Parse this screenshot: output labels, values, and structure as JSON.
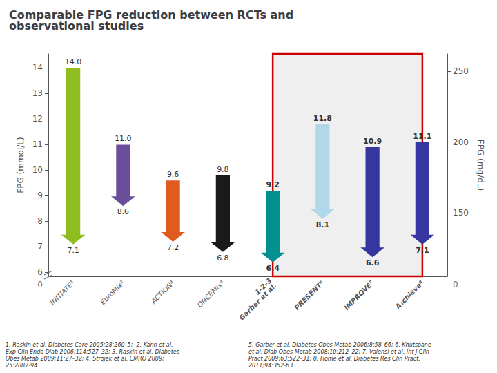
{
  "chart_data": {
    "type": "arrow",
    "title": "Comparable FPG reduction between RCTs and\nobservational studies",
    "ylabel": "FPG (mmol/L)",
    "y2label": "FPG (mg/dL)",
    "categories": [
      "INITIATE¹",
      "EuroMix²",
      "ACTION³",
      "ONCEMix⁴",
      "1-2-3\nGarber et al.",
      "PRESENT⁶",
      "IMPROVE⁷",
      "A₁chieve⁸"
    ],
    "top_values": [
      14.0,
      11.0,
      9.6,
      9.8,
      9.2,
      11.8,
      10.9,
      11.1
    ],
    "bottom_values": [
      7.1,
      8.6,
      7.2,
      6.8,
      6.4,
      8.1,
      6.6,
      7.1
    ],
    "top_value_labels": [
      "14.0",
      "11.0",
      "9.6",
      "9.8",
      "9.2",
      "11.8",
      "10.9",
      "11.1"
    ],
    "bottom_value_labels": [
      "7.1",
      "8.6",
      "7.2",
      "6.8",
      "6.4",
      "8.1",
      "6.6",
      "7.1"
    ],
    "data_labels": true,
    "colors": [
      "#8fbc1e",
      "#6b4e9b",
      "#e05c1e",
      "#1a1a1a",
      "#009090",
      "#b0d8e8",
      "#3636a0",
      "#3636a0"
    ],
    "ylim": [
      5.85,
      14.55
    ],
    "yticks": [
      6,
      7,
      8,
      9,
      10,
      11,
      12,
      13,
      14
    ],
    "y2lim": [
      105.40647,
      262.16481
    ],
    "y2ticks": [
      150,
      200,
      250
    ],
    "grid": false,
    "highlight": [
      "1-2-3\nGarber et al.",
      "PRESENT⁶",
      "IMPROVE⁷",
      "A₁chieve⁸"
    ],
    "highlight_color": "#efefef",
    "highlight_edge_color": "#cc0000",
    "annotations": [
      {
        "text": "0",
        "axis": "y"
      },
      {
        "text": "0",
        "axis": "y2"
      }
    ],
    "footnotes": [
      "1. Raskin et al. Diabetes Care 2005;28:260–5;  2. Kann et al.\nExp Clin Endo Diab 2006;114:527–32; 3. Raskin et al. Diabetes\nObes Metab 2009;11:27–32; 4. Strojek et al. CMRO 2009;\n25:2887-94",
      "5. Garber et al. Diabetes Obes Metab 2006;8:58–66; 6. Khutsoane\net al. Diab Obes Metab 2008;10:212–22; 7. Valensi et al. Int J Clin\nPract 2009;63:522–31; 8. Home et al. Diabetes Res Clin Pract.\n2011;94:352-63."
    ]
  }
}
